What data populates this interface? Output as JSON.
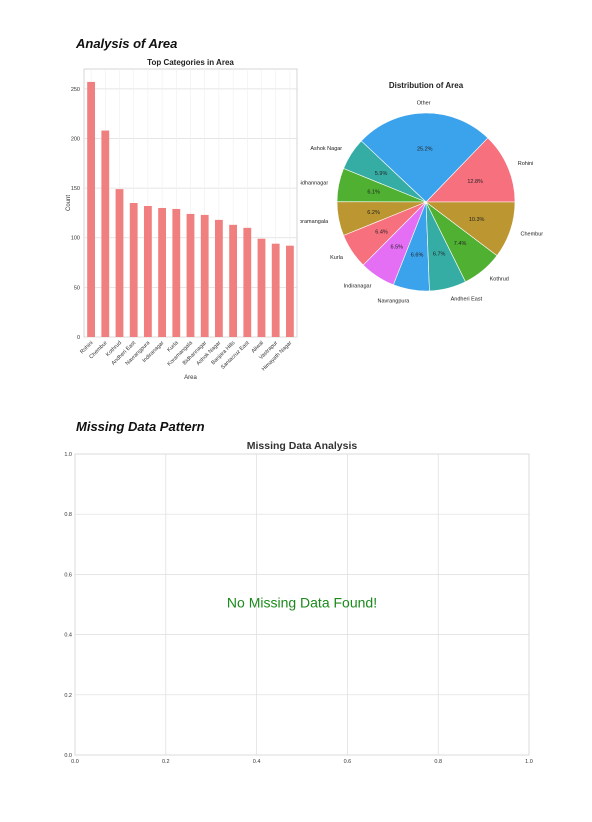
{
  "sections": {
    "area_title": "Analysis of Area",
    "missing_title": "Missing Data Pattern"
  },
  "chart_data": [
    {
      "type": "bar",
      "title": "Top Categories in Area",
      "xlabel": "Area",
      "ylabel": "Count",
      "ylim": [
        0,
        270
      ],
      "yticks": [
        0,
        50,
        100,
        150,
        200,
        250
      ],
      "grid": true,
      "color": "#f08080",
      "categories": [
        "Rohini",
        "Chembur",
        "Kothrud",
        "Andheri East",
        "Navrangpura",
        "Indiranagar",
        "Kurla",
        "Koramangala",
        "Bidhannagar",
        "Ashok Nagar",
        "Banjara Hills",
        "Santacruz East",
        "Aliwal",
        "Vastrapur",
        "Himayath Nagar"
      ],
      "values": [
        257,
        208,
        149,
        135,
        132,
        130,
        129,
        124,
        123,
        118,
        113,
        110,
        99,
        94,
        92
      ]
    },
    {
      "type": "pie",
      "title": "Distribution of Area",
      "slices": [
        {
          "label": "Rohini",
          "value": 12.8,
          "pct": "12.8%",
          "color": "#f7707e"
        },
        {
          "label": "Other",
          "value": 25.2,
          "pct": "25.2%",
          "color": "#3ba3ec"
        },
        {
          "label": "Ashok Nagar",
          "value": 5.9,
          "pct": "5.9%",
          "color": "#36ada4"
        },
        {
          "label": "Bidhannagar",
          "value": 6.1,
          "pct": "6.1%",
          "color": "#4fb032"
        },
        {
          "label": "Koramangala",
          "value": 6.2,
          "pct": "6.2%",
          "color": "#bb9631"
        },
        {
          "label": "Kurla",
          "value": 6.4,
          "pct": "6.4%",
          "color": "#f7707e"
        },
        {
          "label": "Indiranagar",
          "value": 6.5,
          "pct": "6.5%",
          "color": "#e46ff4"
        },
        {
          "label": "Navrangpura",
          "value": 6.6,
          "pct": "6.6%",
          "color": "#3ba3ec"
        },
        {
          "label": "Andheri East",
          "value": 6.7,
          "pct": "6.7%",
          "color": "#36ada4"
        },
        {
          "label": "Kothrud",
          "value": 7.4,
          "pct": "7.4%",
          "color": "#4fb032"
        },
        {
          "label": "Chembur",
          "value": 10.3,
          "pct": "10.3%",
          "color": "#bb9631"
        }
      ]
    },
    {
      "type": "scatter",
      "title": "Missing Data Analysis",
      "message": "No Missing Data Found!",
      "message_color": "#1a8a1a",
      "xlim": [
        0,
        1
      ],
      "ylim": [
        0,
        1
      ],
      "xticks": [
        "0.0",
        "0.2",
        "0.4",
        "0.6",
        "0.8",
        "1.0"
      ],
      "yticks": [
        "0.0",
        "0.2",
        "0.4",
        "0.6",
        "0.8",
        "1.0"
      ],
      "grid": true
    }
  ]
}
